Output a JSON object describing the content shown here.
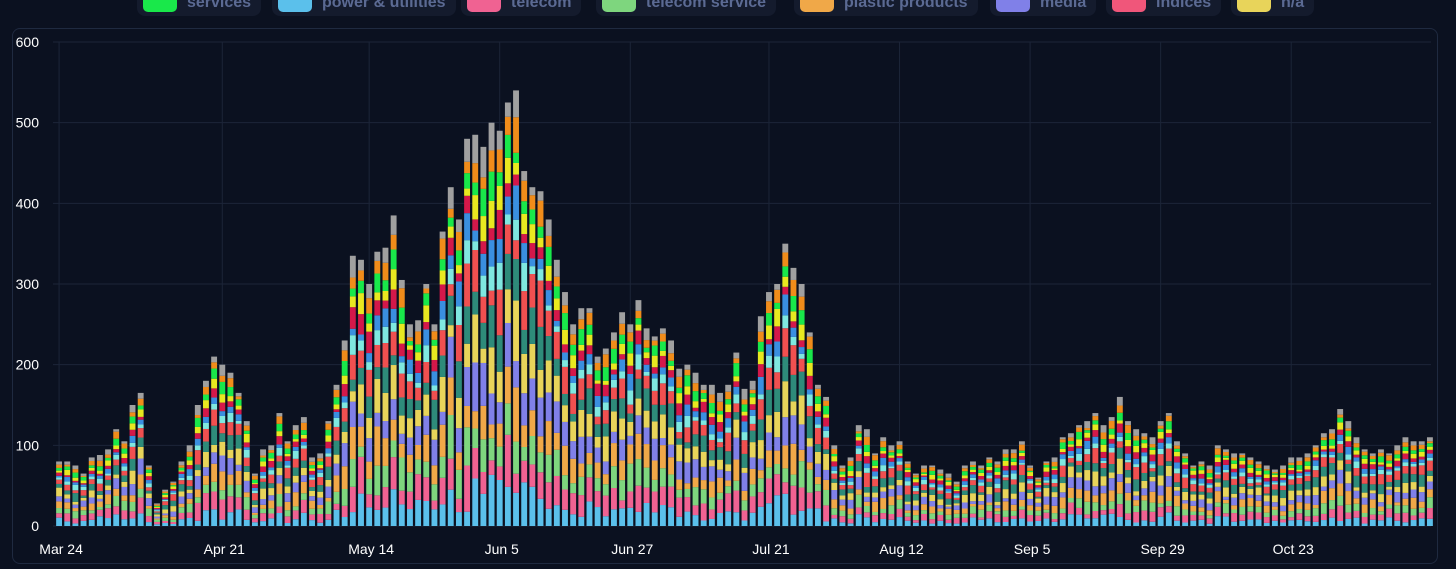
{
  "legend": [
    {
      "label": "services",
      "color": "#19e84a"
    },
    {
      "label": "power & utilities",
      "color": "#5bc0eb"
    },
    {
      "label": "telecom",
      "color": "#f06292"
    },
    {
      "label": "telecom service",
      "color": "#7ed67e"
    },
    {
      "label": "plastic products",
      "color": "#f0a848"
    },
    {
      "label": "media",
      "color": "#8080e8"
    },
    {
      "label": "indices",
      "color": "#f0567a"
    },
    {
      "label": "n/a",
      "color": "#e8d45a"
    }
  ],
  "chart_data": {
    "type": "bar",
    "stacked": true,
    "grid": true,
    "legend_position": "top",
    "ylim": [
      0,
      600
    ],
    "y_ticks": [
      "0",
      "100",
      "200",
      "300",
      "400",
      "500",
      "600"
    ],
    "x_ticks": [
      "Mar 24",
      "Apr 21",
      "May 14",
      "Jun 5",
      "Jun 27",
      "Jul 21",
      "Aug 12",
      "Sep 5",
      "Sep 29",
      "Oct 23"
    ],
    "segment_colors": [
      "#5bc0eb",
      "#f06292",
      "#7ed67e",
      "#f0a848",
      "#8080e8",
      "#e8d45a",
      "#2e8b7a",
      "#f05050",
      "#7fe8e0",
      "#3a8fe0",
      "#d4184a",
      "#e8e820",
      "#19e84a",
      "#f08c1a",
      "#a0a0a0"
    ],
    "totals": [
      80,
      80,
      75,
      65,
      85,
      88,
      95,
      120,
      105,
      150,
      165,
      75,
      28,
      45,
      55,
      80,
      100,
      150,
      180,
      210,
      200,
      190,
      165,
      130,
      65,
      95,
      100,
      140,
      105,
      125,
      135,
      85,
      90,
      130,
      175,
      230,
      335,
      330,
      300,
      340,
      345,
      385,
      305,
      250,
      255,
      300,
      250,
      365,
      420,
      380,
      480,
      485,
      470,
      500,
      490,
      525,
      540,
      440,
      420,
      415,
      380,
      330,
      290,
      250,
      270,
      270,
      210,
      220,
      240,
      265,
      250,
      280,
      245,
      235,
      245,
      230,
      195,
      200,
      190,
      175,
      175,
      165,
      175,
      215,
      170,
      180,
      260,
      290,
      300,
      350,
      320,
      300,
      240,
      175,
      160,
      100,
      75,
      85,
      125,
      120,
      90,
      110,
      100,
      105,
      80,
      65,
      75,
      75,
      70,
      65,
      55,
      75,
      80,
      75,
      85,
      80,
      95,
      95,
      105,
      75,
      60,
      80,
      85,
      110,
      115,
      125,
      130,
      140,
      125,
      135,
      160,
      130,
      120,
      115,
      110,
      130,
      140,
      105,
      90,
      75,
      80,
      75,
      100,
      95,
      90,
      90,
      85,
      80,
      75,
      70,
      75,
      85,
      85,
      90,
      100,
      115,
      120,
      145,
      130,
      110,
      95,
      90,
      95,
      90,
      100,
      110,
      105,
      105,
      110
    ]
  }
}
